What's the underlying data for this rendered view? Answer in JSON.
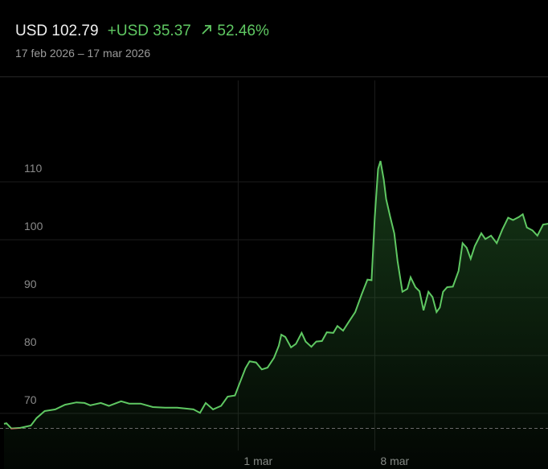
{
  "header": {
    "price": "USD 102.79",
    "change": "+USD 35.37",
    "change_pct": "52.46%",
    "date_range": "17 feb 2026 – 17 mar 2026"
  },
  "chart_data": {
    "type": "line",
    "x": [
      0,
      3,
      9,
      20,
      33,
      40,
      50,
      63,
      75,
      89,
      99,
      106,
      119,
      129,
      144,
      154,
      168,
      183,
      198,
      213,
      233,
      241,
      248,
      257,
      267,
      275,
      284,
      290,
      297,
      302,
      310,
      317,
      324,
      332,
      338,
      341,
      346,
      353,
      359,
      366,
      371,
      378,
      384,
      391,
      397,
      405,
      410,
      417,
      424,
      432,
      440,
      447,
      452,
      456,
      460,
      463,
      467,
      470,
      475,
      480,
      484,
      490,
      496,
      500,
      506,
      511,
      516,
      522,
      527,
      532,
      536,
      540,
      545,
      552,
      559,
      564,
      569,
      574,
      579,
      587,
      592,
      599,
      606,
      613,
      620,
      626,
      633,
      638,
      643,
      650,
      656,
      663,
      670
    ],
    "series": [
      {
        "name": "USD",
        "color": "#5fc862",
        "negative_color": "#e8696b",
        "values": [
          68.2,
          68.3,
          67.4,
          67.5,
          67.9,
          69.2,
          70.4,
          70.7,
          71.5,
          71.9,
          71.8,
          71.4,
          71.8,
          71.3,
          72.1,
          71.7,
          71.7,
          71.1,
          71.0,
          71.0,
          70.7,
          70.1,
          71.8,
          70.7,
          71.3,
          72.9,
          73.1,
          75.3,
          77.8,
          79.0,
          78.8,
          77.6,
          77.9,
          79.6,
          81.7,
          83.6,
          83.2,
          81.4,
          82.0,
          83.9,
          82.4,
          81.5,
          82.4,
          82.5,
          84.0,
          83.9,
          85.1,
          84.3,
          85.8,
          87.5,
          90.6,
          93.1,
          93.0,
          103.9,
          112.2,
          113.6,
          110.4,
          107.0,
          103.9,
          101.1,
          96.3,
          91.0,
          91.5,
          93.5,
          91.8,
          91.1,
          87.8,
          91.0,
          90.1,
          87.5,
          88.3,
          91.0,
          91.8,
          91.9,
          94.6,
          99.4,
          98.6,
          96.7,
          98.9,
          101.1,
          100.1,
          100.7,
          99.4,
          101.8,
          103.8,
          103.4,
          103.9,
          104.4,
          102.1,
          101.6,
          100.7,
          102.6,
          102.79
        ]
      }
    ],
    "baseline": 67.42,
    "xlim": [
      0,
      672
    ],
    "xticks": [
      {
        "value": 288,
        "label": "1 mar"
      },
      {
        "value": 456,
        "label": "8 mar"
      }
    ],
    "ylim": [
      60.4,
      127.5
    ],
    "yticks": [
      70,
      80,
      90,
      100,
      110
    ],
    "grid": true
  }
}
